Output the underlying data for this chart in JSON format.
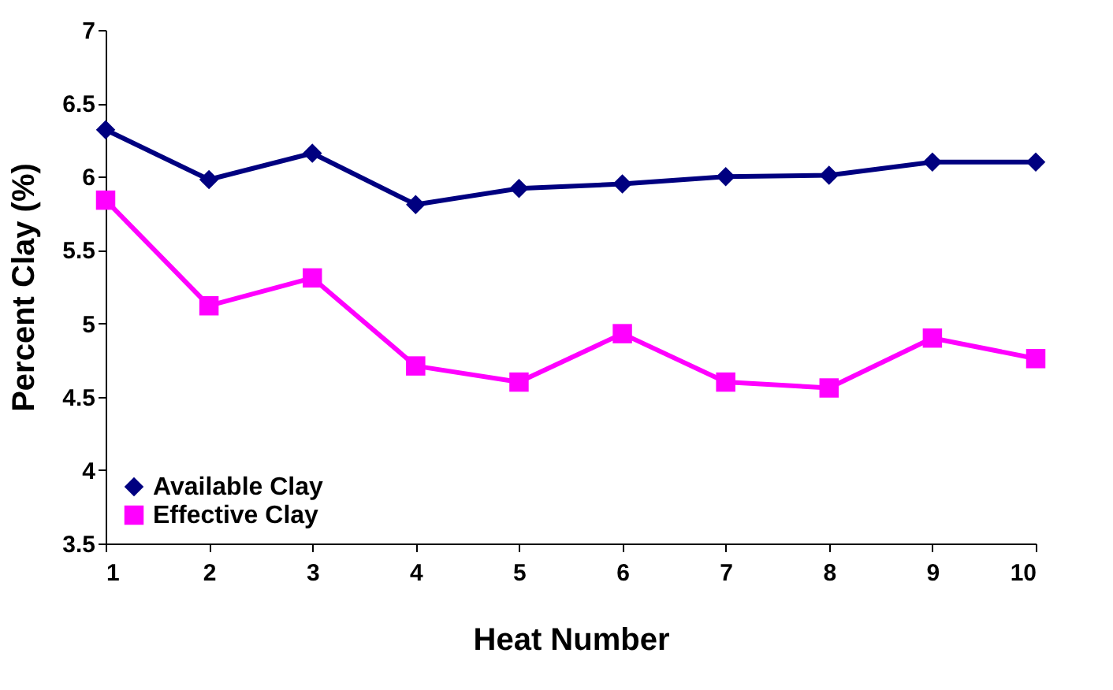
{
  "chart_data": {
    "type": "line",
    "xlabel": "Heat Number",
    "ylabel": "Percent Clay (%)",
    "x": [
      1,
      2,
      3,
      4,
      5,
      6,
      7,
      8,
      9,
      10
    ],
    "series": [
      {
        "name": "Available Clay",
        "color": "#000080",
        "marker": "diamond",
        "values": [
          6.32,
          5.98,
          6.16,
          5.81,
          5.92,
          5.95,
          6.0,
          6.01,
          6.1,
          6.1
        ]
      },
      {
        "name": "Effective Clay",
        "color": "#ff00ff",
        "marker": "square",
        "values": [
          5.84,
          5.12,
          5.31,
          4.71,
          4.6,
          4.93,
          4.6,
          4.56,
          4.9,
          4.76
        ]
      }
    ],
    "xlim": [
      1,
      10
    ],
    "xticks": [
      1,
      2,
      3,
      4,
      5,
      6,
      7,
      8,
      9,
      10
    ],
    "ylim": [
      3.5,
      7
    ],
    "yticks": [
      3.5,
      4,
      4.5,
      5,
      5.5,
      6,
      6.5,
      7
    ],
    "grid": false,
    "legend": "bottom left",
    "line_style": "solid"
  }
}
